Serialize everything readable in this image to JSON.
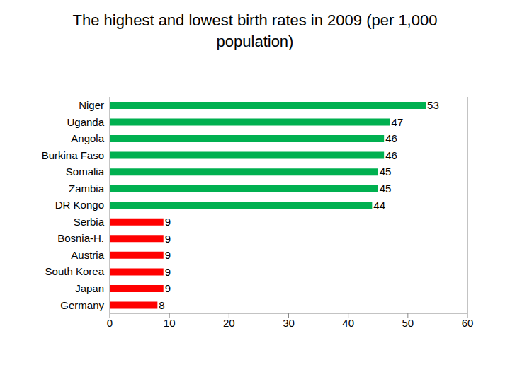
{
  "chart_data": {
    "type": "bar",
    "title": "The highest and lowest birth rates in 2009 (per 1,000 population)",
    "orientation": "horizontal",
    "categories": [
      "Niger",
      "Uganda",
      "Angola",
      "Burkina Faso",
      "Somalia",
      "Zambia",
      "DR Kongo",
      "Serbia",
      "Bosnia-H.",
      "Austria",
      "South Korea",
      "Japan",
      "Germany"
    ],
    "values": [
      53,
      47,
      46,
      46,
      45,
      45,
      44,
      9,
      9,
      9,
      9,
      9,
      8
    ],
    "colors": [
      "#00b050",
      "#00b050",
      "#00b050",
      "#00b050",
      "#00b050",
      "#00b050",
      "#00b050",
      "#ff0000",
      "#ff0000",
      "#ff0000",
      "#ff0000",
      "#ff0000",
      "#ff0000"
    ],
    "xlim": [
      0,
      60
    ],
    "xticks": [
      0,
      10,
      20,
      30,
      40,
      50,
      60
    ],
    "grid": false,
    "data_labels": true
  }
}
